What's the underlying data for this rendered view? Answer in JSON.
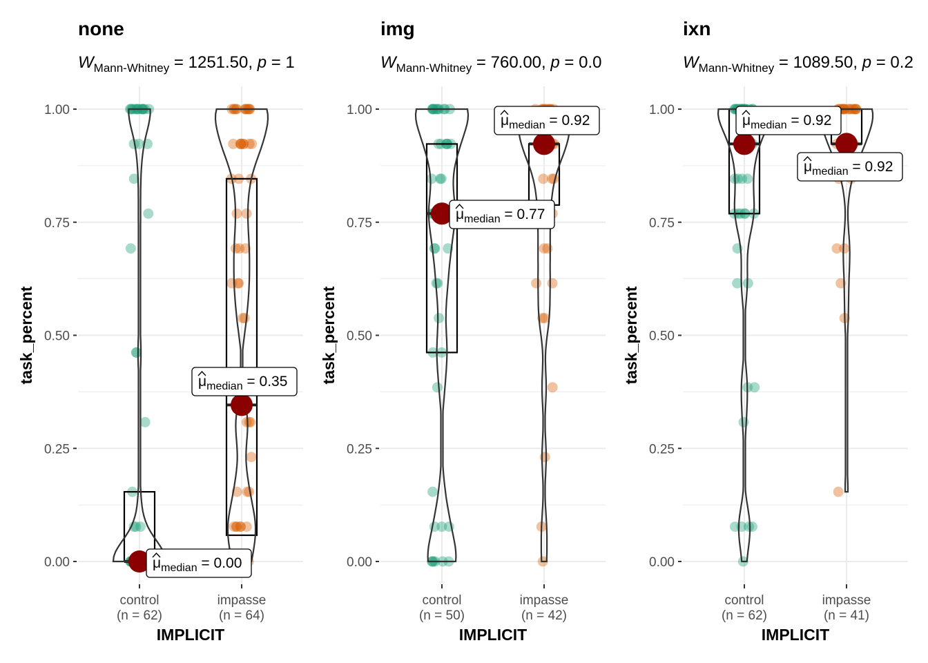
{
  "colors": {
    "control": "#1b9e77",
    "impasse": "#d95f02",
    "median": "#8b0000",
    "grid": "#ebebeb",
    "violin": "#333333"
  },
  "chart_data": [
    {
      "type": "box-violin-scatter",
      "title": "none",
      "subtitle": {
        "W": "W",
        "sub": "Mann-Whitney",
        "rest": " = 1251.50, ",
        "p": "p",
        "prest": " = 1"
      },
      "xlabel": "IMPLICIT",
      "ylabel": "task_percent",
      "ylim": [
        0,
        1
      ],
      "yticks": [
        "0.00",
        "0.25",
        "0.50",
        "0.75",
        "1.00"
      ],
      "groups": [
        {
          "name": "control",
          "n_label": "(n = 62)",
          "box": {
            "q1": 0.0,
            "median": 0.0,
            "q3": 0.154,
            "min": 0.0,
            "max": 1.0
          },
          "median_label": "0.00",
          "points": [
            0,
            0,
            0,
            0,
            0,
            0,
            0,
            0,
            0,
            0,
            0,
            0,
            0,
            0,
            0,
            0,
            0,
            0,
            0,
            0,
            0,
            0,
            0,
            0,
            0,
            0,
            0,
            0,
            0,
            0,
            0,
            0,
            0,
            0,
            0,
            0.077,
            0.077,
            0.077,
            0.154,
            0.308,
            0.462,
            0.462,
            0.692,
            0.769,
            0.846,
            0.923,
            0.923,
            0.923,
            1,
            1,
            1,
            1,
            1,
            1,
            1,
            1,
            1,
            1,
            1,
            1,
            1,
            1
          ]
        },
        {
          "name": "impasse",
          "n_label": "(n = 64)",
          "box": {
            "q1": 0.058,
            "median": 0.346,
            "q3": 0.846,
            "min": 0.0,
            "max": 1.0
          },
          "median_label": "0.35",
          "points": [
            0,
            0,
            0,
            0,
            0.077,
            0.077,
            0.077,
            0.077,
            0.077,
            0.077,
            0.154,
            0.154,
            0.154,
            0.231,
            0.308,
            0.308,
            0.308,
            0.538,
            0.538,
            0.615,
            0.615,
            0.615,
            0.692,
            0.692,
            0.692,
            0.769,
            0.769,
            0.846,
            0.846,
            0.846,
            0.923,
            0.923,
            0.923,
            0.923,
            0.923,
            0.923,
            0.923,
            0.923,
            1,
            1,
            1,
            1,
            1,
            1,
            1,
            1,
            1,
            1,
            1,
            1
          ]
        }
      ]
    },
    {
      "type": "box-violin-scatter",
      "title": "img",
      "subtitle": {
        "W": "W",
        "sub": "Mann-Whitney",
        "rest": " = 760.00, ",
        "p": "p",
        "prest": " = 0.0"
      },
      "xlabel": "IMPLICIT",
      "ylabel": "task_percent",
      "ylim": [
        0,
        1
      ],
      "yticks": [
        "0.00",
        "0.25",
        "0.50",
        "0.75",
        "1.00"
      ],
      "groups": [
        {
          "name": "control",
          "n_label": "(n = 50)",
          "box": {
            "q1": 0.462,
            "median": 0.769,
            "q3": 0.923,
            "min": 0.0,
            "max": 1.0
          },
          "median_label": "0.77",
          "points": [
            0,
            0,
            0,
            0,
            0,
            0,
            0.077,
            0.077,
            0.077,
            0.154,
            0.385,
            0.462,
            0.462,
            0.538,
            0.615,
            0.615,
            0.692,
            0.692,
            0.692,
            0.769,
            0.769,
            0.769,
            0.769,
            0.769,
            0.846,
            0.846,
            0.846,
            0.923,
            0.923,
            0.923,
            0.923,
            0.923,
            0.923,
            1,
            1,
            1,
            1,
            1,
            1,
            1,
            1,
            1,
            1,
            1
          ]
        },
        {
          "name": "impasse",
          "n_label": "(n = 42)",
          "box": {
            "q1": 0.788,
            "median": 0.923,
            "q3": 0.923,
            "min": 0.0,
            "max": 1.0
          },
          "median_label": "0.92",
          "points": [
            0,
            0.077,
            0.231,
            0.385,
            0.538,
            0.538,
            0.615,
            0.615,
            0.692,
            0.692,
            0.769,
            0.769,
            0.846,
            0.846,
            0.846,
            0.923,
            0.923,
            0.923,
            0.923,
            0.923,
            0.923,
            0.923,
            0.923,
            1,
            1,
            1,
            1,
            1,
            1,
            1,
            1,
            1,
            1
          ]
        }
      ]
    },
    {
      "type": "box-violin-scatter",
      "title": "ixn",
      "subtitle": {
        "W": "W",
        "sub": "Mann-Whitney",
        "rest": " = 1089.50, ",
        "p": "p",
        "prest": " = 0.2"
      },
      "xlabel": "IMPLICIT",
      "ylabel": "task_percent",
      "ylim": [
        0,
        1
      ],
      "yticks": [
        "0.00",
        "0.25",
        "0.50",
        "0.75",
        "1.00"
      ],
      "groups": [
        {
          "name": "control",
          "n_label": "(n = 62)",
          "box": {
            "q1": 0.769,
            "median": 0.923,
            "q3": 1.0,
            "min": 0.0,
            "max": 1.0
          },
          "median_label": "0.92",
          "points": [
            0,
            0.077,
            0.077,
            0.077,
            0.077,
            0.308,
            0.385,
            0.385,
            0.615,
            0.615,
            0.692,
            0.769,
            0.769,
            0.769,
            0.769,
            0.769,
            0.769,
            0.846,
            0.846,
            0.846,
            0.846,
            0.923,
            0.923,
            0.923,
            0.923,
            0.923,
            0.923,
            0.923,
            1,
            1,
            1,
            1,
            1,
            1,
            1,
            1,
            1,
            1,
            1,
            1,
            1,
            1,
            1,
            1,
            1,
            1
          ]
        },
        {
          "name": "impasse",
          "n_label": "(n = 41)",
          "box": {
            "q1": 0.923,
            "median": 0.923,
            "q3": 1.0,
            "min": 0.154,
            "max": 1.0
          },
          "median_label": "0.92",
          "points": [
            0.154,
            0.538,
            0.615,
            0.692,
            0.692,
            0.846,
            0.846,
            0.923,
            0.923,
            0.923,
            0.923,
            0.923,
            0.923,
            0.923,
            0.923,
            0.923,
            1,
            1,
            1,
            1,
            1,
            1,
            1,
            1,
            1,
            1,
            1,
            1,
            1,
            1,
            1,
            1
          ]
        }
      ]
    }
  ],
  "annotation_prefix": "median",
  "mu_symbol": "μ"
}
